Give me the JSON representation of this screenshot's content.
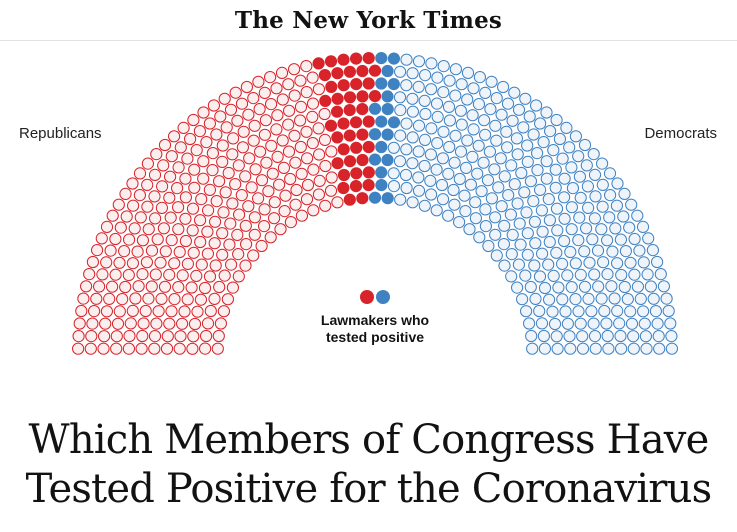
{
  "masthead": {
    "logo_text": "The New York Times"
  },
  "chart_data": {
    "type": "parliament",
    "party_left": "Republicans",
    "party_right": "Democrats",
    "legend_label": "Lawmakers who tested positive",
    "rows": 12,
    "republican_seats_approx": 260,
    "democrat_seats_approx": 262,
    "republicans_tested_positive_approx": 43,
    "democrats_tested_positive_approx": 19,
    "colors": {
      "republican": "#d8232a",
      "democrat": "#3f82c2",
      "republican_fill": "#fbeeee",
      "democrat_fill": "#eef4fa"
    }
  },
  "legend": {
    "line1": "Lawmakers who",
    "line2": "tested positive"
  },
  "headline": {
    "line1": "Which Members of Congress Have",
    "line2": "Tested Positive for the Coronavirus"
  }
}
